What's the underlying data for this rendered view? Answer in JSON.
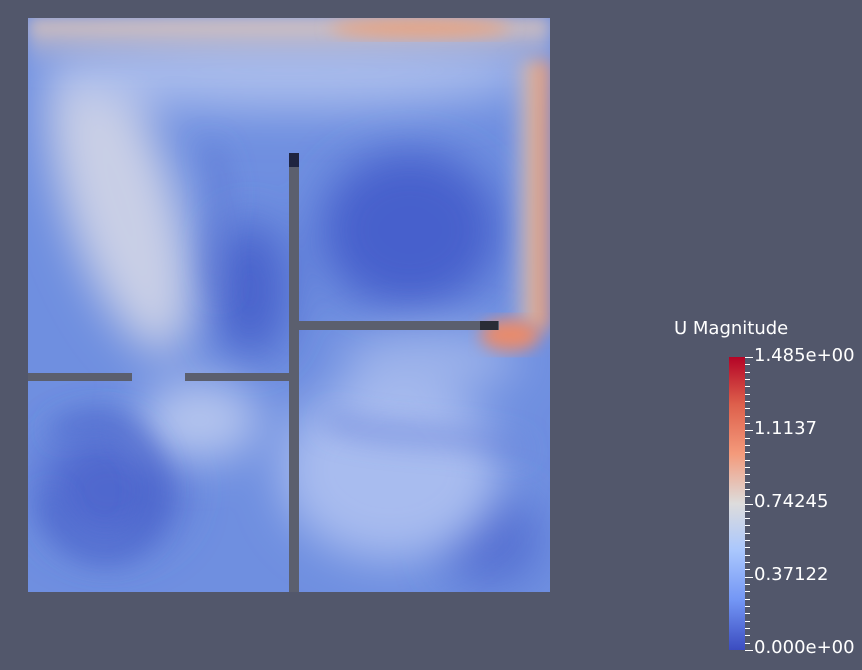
{
  "legend": {
    "title": "U Magnitude",
    "labels": [
      "1.485e+00",
      "1.1137",
      "0.74245",
      "0.37122",
      "0.000e+00"
    ]
  },
  "colors": {
    "background": "#52576b",
    "field_low": "#3b4cc0",
    "field_mid": "#dddcdc",
    "field_high": "#b40426",
    "walls": "#5b5f6e"
  }
}
